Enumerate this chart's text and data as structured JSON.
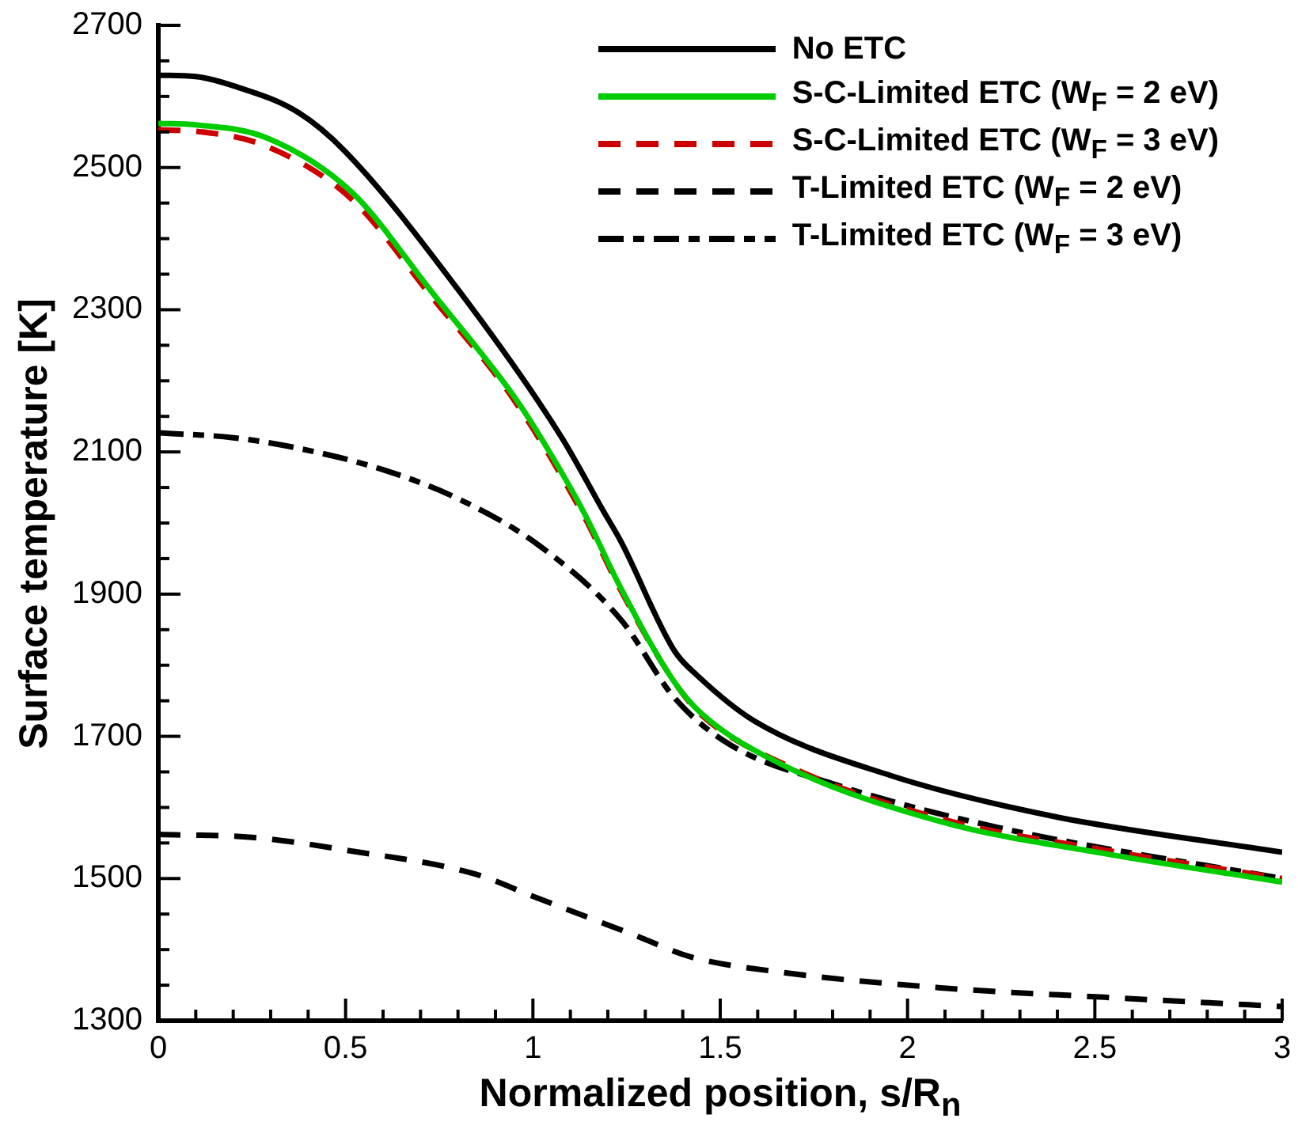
{
  "chart_data": {
    "type": "line",
    "xlabel": "Normalized position, s/R$_{n}$",
    "ylabel": "Surface temperature [K]",
    "xlim": [
      0,
      3
    ],
    "ylim": [
      1300,
      2700
    ],
    "xticks": [
      0,
      {
        "value": 0.1,
        "label": null
      },
      {
        "value": 0.2,
        "label": null
      },
      {
        "value": 0.3,
        "label": null
      },
      {
        "value": 0.4,
        "label": null
      },
      0.5,
      {
        "value": 0.6,
        "label": null
      },
      {
        "value": 0.7,
        "label": null
      },
      {
        "value": 0.8,
        "label": null
      },
      {
        "value": 0.9,
        "label": null
      },
      1,
      {
        "value": 1.1,
        "label": null
      },
      {
        "value": 1.2,
        "label": null
      },
      {
        "value": 1.3,
        "label": null
      },
      {
        "value": 1.4,
        "label": null
      },
      1.5,
      {
        "value": 1.6,
        "label": null
      },
      {
        "value": 1.7,
        "label": null
      },
      {
        "value": 1.8,
        "label": null
      },
      {
        "value": 1.9,
        "label": null
      },
      2,
      {
        "value": 2.1,
        "label": null
      },
      {
        "value": 2.2,
        "label": null
      },
      {
        "value": 2.3,
        "label": null
      },
      {
        "value": 2.4,
        "label": null
      },
      2.5,
      {
        "value": 2.6,
        "label": null
      },
      {
        "value": 2.7,
        "label": null
      },
      {
        "value": 2.8,
        "label": null
      },
      {
        "value": 2.9,
        "label": null
      },
      3
    ],
    "yticks": [
      1300,
      {
        "value": 1350,
        "label": null
      },
      {
        "value": 1400,
        "label": null
      },
      {
        "value": 1450,
        "label": null
      },
      1500,
      {
        "value": 1550,
        "label": null
      },
      {
        "value": 1600,
        "label": null
      },
      {
        "value": 1650,
        "label": null
      },
      1700,
      {
        "value": 1750,
        "label": null
      },
      {
        "value": 1800,
        "label": null
      },
      {
        "value": 1850,
        "label": null
      },
      1900,
      {
        "value": 1950,
        "label": null
      },
      {
        "value": 2000,
        "label": null
      },
      {
        "value": 2050,
        "label": null
      },
      2100,
      {
        "value": 2150,
        "label": null
      },
      {
        "value": 2200,
        "label": null
      },
      {
        "value": 2250,
        "label": null
      },
      2300,
      {
        "value": 2350,
        "label": null
      },
      {
        "value": 2400,
        "label": null
      },
      {
        "value": 2450,
        "label": null
      },
      2500,
      {
        "value": 2550,
        "label": null
      },
      {
        "value": 2600,
        "label": null
      },
      {
        "value": 2650,
        "label": null
      },
      2700
    ],
    "grid": false,
    "legend": "top right",
    "marker": "none",
    "series": [
      {
        "name": "No ETC",
        "color": "#000000",
        "line_style": "solid",
        "x": [
          0,
          0.1,
          0.2,
          0.375,
          0.5,
          0.805,
          1.076,
          1.19,
          1.235,
          1.378,
          1.44,
          1.593,
          1.954,
          2.385,
          3
        ],
        "values": [
          2630,
          2628,
          2615,
          2577,
          2522,
          2325,
          2121,
          2015,
          1974,
          1820,
          1785,
          1721,
          1645,
          1588,
          1537
        ]
      },
      {
        "name": "S-C-Limited ETC (W$_{F}$ = 2 eV)",
        "color": "#00cc00",
        "line_style": "solid",
        "x": [
          0,
          0.1,
          0.288,
          0.517,
          0.73,
          0.947,
          1.02,
          1.136,
          1.235,
          1.378,
          1.45,
          1.666,
          2.096,
          2.527,
          3
        ],
        "values": [
          2562,
          2560,
          2542,
          2465,
          2325,
          2180,
          2121,
          2015,
          1908,
          1776,
          1732,
          1660,
          1579,
          1535,
          1495
        ]
      },
      {
        "name": "S-C-Limited ETC (W$_{F}$ = 3 eV)",
        "color": "#cc0000",
        "line_style": "dashed",
        "x": [
          0,
          0.1,
          0.288,
          0.517,
          0.73,
          0.947,
          1.136,
          1.235,
          1.378,
          1.45,
          1.666,
          2.096,
          2.527,
          3
        ],
        "values": [
          2553,
          2551,
          2530,
          2455,
          2318,
          2175,
          2010,
          1905,
          1776,
          1730,
          1662,
          1583,
          1540,
          1500
        ]
      },
      {
        "name": "T-Limited ETC (W$_{F}$ = 2 eV)",
        "color": "#000000",
        "line_style": "dashed",
        "x": [
          0,
          0.25,
          0.5,
          0.848,
          1,
          1.278,
          1.42,
          1.666,
          2.096,
          2.527,
          3
        ],
        "values": [
          1562,
          1558,
          1540,
          1506,
          1475,
          1419,
          1390,
          1368,
          1346,
          1333,
          1320
        ]
      },
      {
        "name": "T-Limited ETC (W$_{F}$ = 3 eV)",
        "color": "#000000",
        "line_style": "dashdot",
        "x": [
          0,
          0.2,
          0.375,
          0.6,
          0.805,
          1.02,
          1.235,
          1.378,
          1.524,
          1.808,
          2.24,
          3
        ],
        "values": [
          2127,
          2120,
          2105,
          2075,
          2033,
          1967,
          1864,
          1754,
          1689,
          1632,
          1572,
          1500
        ]
      }
    ]
  }
}
